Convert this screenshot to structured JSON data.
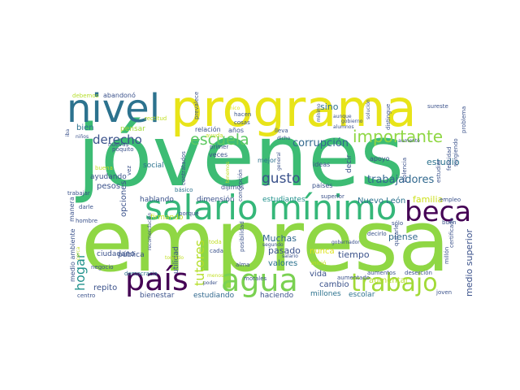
{
  "cloud": {
    "words": [
      {
        "text": "jóvenes",
        "color": "#3dbc74"
      },
      {
        "text": "empresa",
        "color": "#8fd744"
      },
      {
        "text": "programa",
        "color": "#e8e419"
      },
      {
        "text": "nivel",
        "color": "#2c728e"
      },
      {
        "text": "salario mínimo",
        "color": "#35b779"
      },
      {
        "text": "beca",
        "color": "#440154"
      },
      {
        "text": "país",
        "color": "#440154"
      },
      {
        "text": "agua",
        "color": "#7ad151"
      },
      {
        "text": "trabajo",
        "color": "#a2da37"
      },
      {
        "text": "importante",
        "color": "#8fd744"
      },
      {
        "text": "escuela",
        "color": "#5ec962"
      },
      {
        "text": "derecho",
        "color": "#3b528b"
      },
      {
        "text": "corrupción",
        "color": "#31688e"
      },
      {
        "text": "gusto",
        "color": "#3b528b"
      },
      {
        "text": "trabajadores",
        "color": "#31688e"
      },
      {
        "text": "tutores",
        "color": "#b5de2b"
      },
      {
        "text": "hogar",
        "color": "#21918c"
      },
      {
        "text": "estudio",
        "color": "#2c728e"
      },
      {
        "text": "sino",
        "color": "#2c728e"
      },
      {
        "text": "familia",
        "color": "#cde11d"
      },
      {
        "text": "medio superior",
        "color": "#3b528b"
      },
      {
        "text": "Nuevo León",
        "color": "#2c728e"
      },
      {
        "text": "piense",
        "color": "#31688e"
      },
      {
        "text": "Muchas",
        "color": "#31688e"
      },
      {
        "text": "pasado",
        "color": "#3b528b"
      },
      {
        "text": "valores",
        "color": "#2c728e"
      },
      {
        "text": "tiempo",
        "color": "#3b528b"
      },
      {
        "text": "nunca",
        "color": "#dde318"
      },
      {
        "text": "aumentar",
        "color": "#b5de2b"
      },
      {
        "text": "vida",
        "color": "#3b528b"
      },
      {
        "text": "cambio",
        "color": "#3b528b"
      },
      {
        "text": "millones",
        "color": "#2c728e"
      },
      {
        "text": "escolar",
        "color": "#2c728e"
      },
      {
        "text": "haciendo",
        "color": "#3b528b"
      },
      {
        "text": "estudiando",
        "color": "#31688e"
      },
      {
        "text": "bienestar",
        "color": "#3b528b"
      },
      {
        "text": "repito",
        "color": "#3b528b"
      },
      {
        "text": "opciones",
        "color": "#3b528b"
      },
      {
        "text": "hablando",
        "color": "#3b528b"
      },
      {
        "text": "dimensión",
        "color": "#3b528b"
      },
      {
        "text": "estudiantes",
        "color": "#21918c"
      },
      {
        "text": "ayudando",
        "color": "#3b528b"
      },
      {
        "text": "pesos",
        "color": "#3b528b"
      },
      {
        "text": "bien",
        "color": "#2c728e"
      },
      {
        "text": "pensar",
        "color": "#a2da37"
      },
      {
        "text": "social",
        "color": "#2c728e"
      },
      {
        "text": "ciudadano",
        "color": "#3b528b"
      },
      {
        "text": "pública",
        "color": "#3b528b"
      },
      {
        "text": "utilidad",
        "color": "#3b528b"
      },
      {
        "text": "decir",
        "color": "#3b528b"
      },
      {
        "text": "apoyo",
        "color": "#3b528b"
      },
      {
        "text": "ideas",
        "color": "#3b528b"
      },
      {
        "text": "países",
        "color": "#3b528b"
      },
      {
        "text": "mejor",
        "color": "#2c728e"
      },
      {
        "text": "veces",
        "color": "#3b528b"
      },
      {
        "text": "dijimos",
        "color": "#3b528b"
      },
      {
        "text": "básico",
        "color": "#2c728e"
      },
      {
        "text": "relación",
        "color": "#3b528b"
      },
      {
        "text": "años",
        "color": "#3b528b"
      },
      {
        "text": "abandonó",
        "color": "#3b528b"
      },
      {
        "text": "debemos",
        "color": "#b5de2b"
      },
      {
        "text": "rectitud",
        "color": "#c2df23"
      },
      {
        "text": "ayuda",
        "color": "#c2df23"
      },
      {
        "text": "hacen",
        "color": "#3b528b"
      },
      {
        "text": "cosas",
        "color": "#3b528b"
      },
      {
        "text": "prevalece",
        "color": "#3b528b"
      },
      {
        "text": "único",
        "color": "#dde318"
      },
      {
        "text": "nuevas",
        "color": "#3b528b"
      },
      {
        "text": "niños",
        "color": "#3b528b"
      },
      {
        "text": "poquito",
        "color": "#3b528b"
      },
      {
        "text": "buena",
        "color": "#c2df23"
      },
      {
        "text": "vez",
        "color": "#3b528b"
      },
      {
        "text": "trabajar",
        "color": "#3b528b"
      },
      {
        "text": "darle",
        "color": "#3b528b"
      },
      {
        "text": "hombre",
        "color": "#3b528b"
      },
      {
        "text": "manera",
        "color": "#3b528b"
      },
      {
        "text": "medio ambiente",
        "color": "#3b528b"
      },
      {
        "text": "negocio",
        "color": "#3b528b"
      },
      {
        "text": "centro",
        "color": "#3b528b"
      },
      {
        "text": "democracia",
        "color": "#2c728e"
      },
      {
        "text": "recomendación",
        "color": "#3b528b"
      },
      {
        "text": "tomado",
        "color": "#c2df23"
      },
      {
        "text": "cada",
        "color": "#3b528b"
      },
      {
        "text": "toda",
        "color": "#c2df23"
      },
      {
        "text": "porqué",
        "color": "#3b528b"
      },
      {
        "text": "firmando",
        "color": "#c2df23"
      },
      {
        "text": "menos",
        "color": "#c2df23"
      },
      {
        "text": "poder",
        "color": "#3b528b"
      },
      {
        "text": "alma",
        "color": "#3b528b"
      },
      {
        "text": "morales",
        "color": "#3b528b"
      },
      {
        "text": "aumentado",
        "color": "#3b528b"
      },
      {
        "text": "posibilidad",
        "color": "#3b528b"
      },
      {
        "text": "segundo",
        "color": "#3b528b"
      },
      {
        "text": "salario",
        "color": "#3b528b"
      },
      {
        "text": "inició",
        "color": "#c2df23"
      },
      {
        "text": "superior",
        "color": "#3b528b"
      },
      {
        "text": "gobernador",
        "color": "#3b528b"
      },
      {
        "text": "decirlo",
        "color": "#3b528b"
      },
      {
        "text": "quitarle",
        "color": "#3b528b"
      },
      {
        "text": "aumentos",
        "color": "#3b528b"
      },
      {
        "text": "deserción",
        "color": "#3b528b"
      },
      {
        "text": "joven",
        "color": "#3b528b"
      },
      {
        "text": "sólo",
        "color": "#3b528b"
      },
      {
        "text": "buen",
        "color": "#3b528b"
      },
      {
        "text": "empleo",
        "color": "#3b528b"
      },
      {
        "text": "millón",
        "color": "#3b528b"
      },
      {
        "text": "certificado",
        "color": "#3b528b"
      },
      {
        "text": "estudiar",
        "color": "#3b528b"
      },
      {
        "text": "felicidad",
        "color": "#3b528b"
      },
      {
        "text": "problema",
        "color": "#3b528b"
      },
      {
        "text": "surgiendo",
        "color": "#3b528b"
      },
      {
        "text": "sureste",
        "color": "#3b528b"
      },
      {
        "text": "distingue",
        "color": "#3b528b"
      },
      {
        "text": "aumentó",
        "color": "#3b528b"
      },
      {
        "text": "gobierno",
        "color": "#3b528b"
      },
      {
        "text": "alumnos",
        "color": "#3b528b"
      },
      {
        "text": "aunque",
        "color": "#3b528b"
      },
      {
        "text": "solución",
        "color": "#3b528b"
      },
      {
        "text": "contratados",
        "color": "#3b528b"
      },
      {
        "text": "concepción",
        "color": "#3b528b"
      },
      {
        "text": "general",
        "color": "#3b528b"
      },
      {
        "text": "primer",
        "color": "#3b528b"
      },
      {
        "text": "lleva",
        "color": "#3b528b"
      },
      {
        "text": "iba",
        "color": "#3b528b"
      },
      {
        "text": "mínimo",
        "color": "#3b528b"
      },
      {
        "text": "tenemos",
        "color": "#c2df23"
      },
      {
        "text": "violencia",
        "color": "#3b528b"
      },
      {
        "text": "cerca",
        "color": "#c2df23"
      },
      {
        "text": "dicho",
        "color": "#3b528b"
      }
    ]
  }
}
